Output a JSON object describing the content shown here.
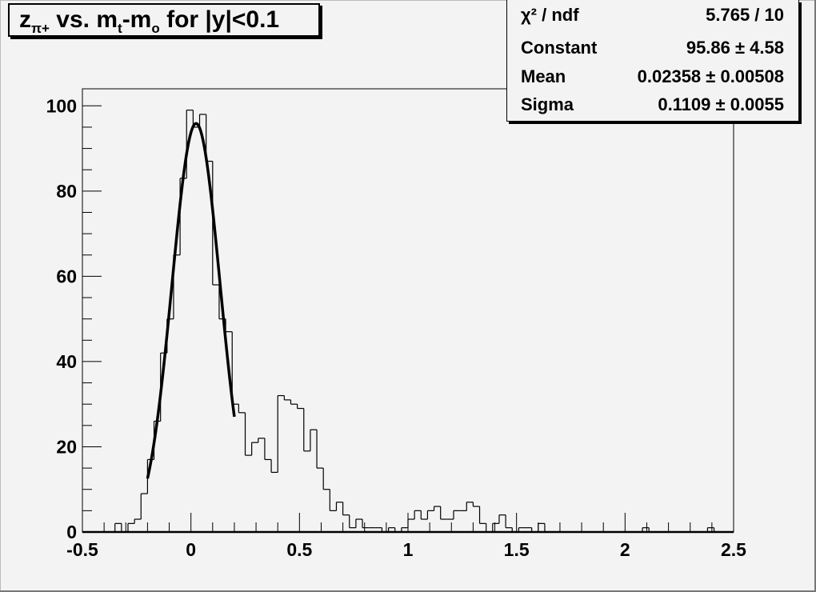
{
  "title": {
    "main": "z",
    "sub": "π+",
    "rest1": " vs. m",
    "sub2": "t",
    "rest2": "-m",
    "sub3": "o",
    "rest3": " for |y|<0.1"
  },
  "stats": [
    {
      "label": "χ² / ndf",
      "value": "5.765 / 10"
    },
    {
      "label": "Constant",
      "value": "95.86 ± 4.58"
    },
    {
      "label": "Mean",
      "value": "0.02358 ± 0.00508"
    },
    {
      "label": "Sigma",
      "value": "0.1109 ± 0.0055"
    }
  ],
  "chart_data": {
    "type": "bar",
    "style": "step-histogram",
    "title": "zπ+ vs. mt-mo for |y|<0.1",
    "xlim": [
      -0.5,
      2.5
    ],
    "ylim": [
      0,
      104
    ],
    "bin_width": 0.03,
    "x_ticks": [
      "-0.5",
      "0",
      "0.5",
      "1",
      "1.5",
      "2",
      "2.5"
    ],
    "y_ticks": [
      "0",
      "20",
      "40",
      "60",
      "80",
      "100"
    ],
    "values": [
      0,
      0,
      0,
      0,
      0,
      2,
      0,
      2,
      3,
      9,
      17,
      26,
      42,
      50,
      65,
      83,
      99,
      95,
      98,
      87,
      58,
      50,
      47,
      30,
      28,
      18,
      21,
      22,
      17,
      14,
      32,
      31,
      30,
      29,
      19,
      24,
      15,
      10,
      5,
      7,
      4,
      1,
      3,
      1,
      1,
      1,
      0,
      1,
      0,
      1,
      3,
      5,
      3,
      5,
      6,
      3,
      3,
      5,
      5,
      7,
      6,
      2,
      0,
      2,
      4,
      1,
      0,
      1,
      1,
      0,
      2,
      0,
      0,
      0,
      0,
      0,
      0,
      0,
      0,
      0,
      0,
      0,
      0,
      0,
      0,
      0,
      1,
      0,
      0,
      0,
      0,
      0,
      0,
      0,
      0,
      0,
      1,
      0,
      0,
      0
    ],
    "fit": {
      "function": "gaus",
      "constant": 95.86,
      "mean": 0.02358,
      "sigma": 0.1109,
      "range": [
        -0.2,
        0.2
      ]
    },
    "grid": false,
    "legend": "top-right",
    "colors": {
      "background": "#f3f3f3",
      "line": "#000000"
    }
  }
}
